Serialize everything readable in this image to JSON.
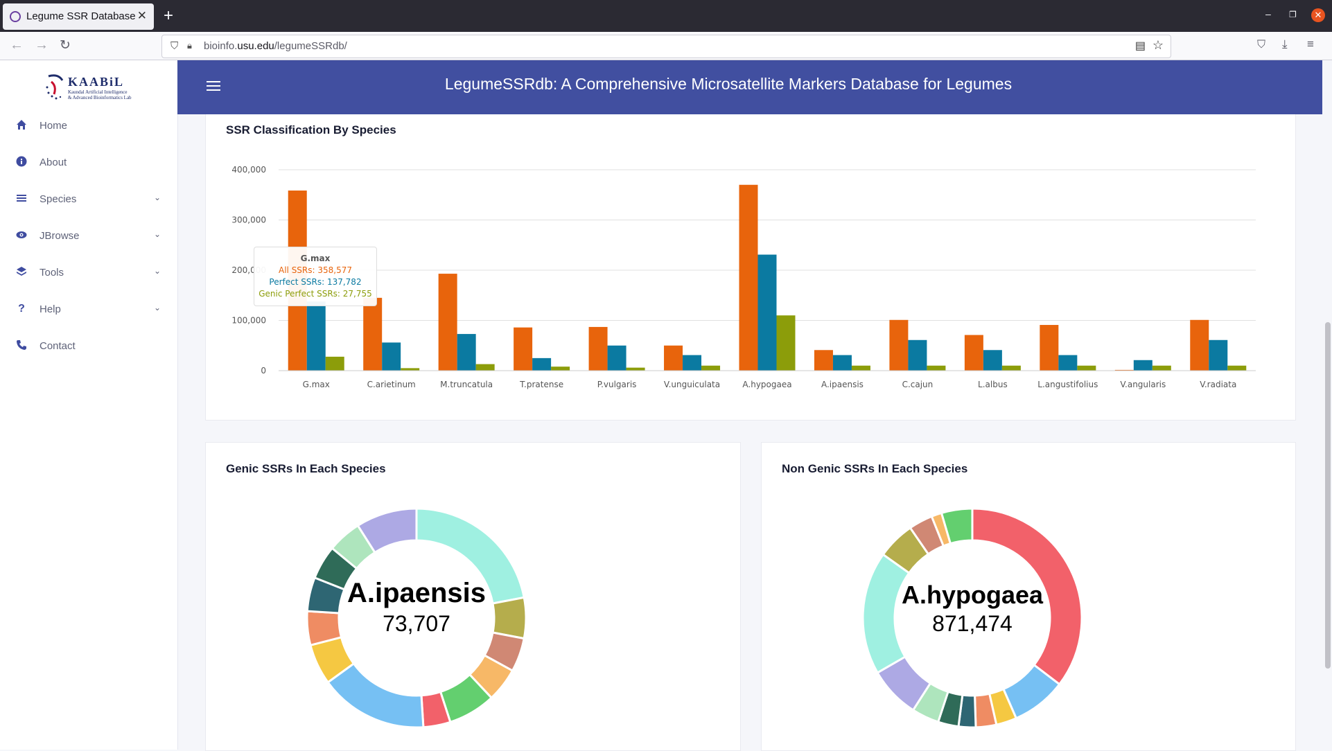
{
  "browser": {
    "tab_title": "Legume SSR Database",
    "url_domain": "bioinfo.",
    "url_host": "usu.edu",
    "url_path": "/legumeSSRdb/"
  },
  "sidebar": {
    "logo_text": "KAABiL",
    "logo_subtitle_1": "Kaundal Artificial Intelligence",
    "logo_subtitle_2": "& Advanced Bioinformatics Lab",
    "items": [
      {
        "label": "Home",
        "icon": "home-icon"
      },
      {
        "label": "About",
        "icon": "info-icon"
      },
      {
        "label": "Species",
        "icon": "list-icon"
      },
      {
        "label": "JBrowse",
        "icon": "eye-icon"
      },
      {
        "label": "Tools",
        "icon": "layers-icon"
      },
      {
        "label": "Help",
        "icon": "question-icon"
      },
      {
        "label": "Contact",
        "icon": "phone-icon"
      }
    ]
  },
  "header": {
    "title": "LegumeSSRdb: A Comprehensive Microsatellite Markers Database for Legumes"
  },
  "colors": {
    "header": "#414fa0",
    "all_ssrs": "#e8640c",
    "perfect_ssrs": "#0b7aa1",
    "genic_perfect_ssrs": "#8c9d0a"
  },
  "bar_card": {
    "title": "SSR Classification By Species",
    "tooltip": {
      "title": "G.max",
      "line1": "All SSRs: 358,577",
      "line2": "Perfect SSRs: 137,782",
      "line3": "Genic Perfect SSRs: 27,755"
    }
  },
  "genic_card": {
    "title": "Genic SSRs In Each Species",
    "center_label": "A.ipaensis",
    "center_value": "73,707"
  },
  "nongenic_card": {
    "title": "Non Genic SSRs In Each Species",
    "center_label": "A.hypogaea",
    "center_value": "871,474"
  },
  "chart_data": [
    {
      "type": "bar",
      "title": "SSR Classification By Species",
      "categories": [
        "G.max",
        "C.arietinum",
        "M.truncatula",
        "T.pratense",
        "P.vulgaris",
        "V.unguiculata",
        "A.hypogaea",
        "A.ipaensis",
        "C.cajun",
        "L.albus",
        "L.angustifolius",
        "V.angularis",
        "V.radiata"
      ],
      "series": [
        {
          "name": "All SSRs",
          "values": [
            358577,
            145000,
            193000,
            86000,
            87000,
            50000,
            370000,
            41000,
            101000,
            71000,
            91000,
            1500,
            101000
          ]
        },
        {
          "name": "Perfect SSRs",
          "values": [
            137782,
            56000,
            73000,
            25000,
            50000,
            31000,
            231000,
            31000,
            61000,
            41000,
            31000,
            21000,
            61000
          ]
        },
        {
          "name": "Genic Perfect SSRs",
          "values": [
            27755,
            5000,
            13000,
            8000,
            6000,
            10000,
            110000,
            10000,
            10000,
            10000,
            10000,
            10000,
            10000
          ]
        }
      ],
      "yticks": [
        "0",
        "100,000",
        "200,000",
        "300,000",
        "400,000"
      ],
      "ylim": [
        0,
        400000
      ],
      "grid": true
    },
    {
      "type": "pie",
      "title": "Genic SSRs In Each Species",
      "center_label": "A.ipaensis",
      "center_value": "73,707",
      "slices": [
        {
          "value": 22,
          "color": "#9ff0e1"
        },
        {
          "value": 6,
          "color": "#b5ad4c"
        },
        {
          "value": 5,
          "color": "#d08874"
        },
        {
          "value": 5,
          "color": "#f7b867"
        },
        {
          "value": 7,
          "color": "#63cf6f"
        },
        {
          "value": 4,
          "color": "#f2616a"
        },
        {
          "value": 16,
          "color": "#76c0f3"
        },
        {
          "value": 6,
          "color": "#f5c842"
        },
        {
          "value": 5,
          "color": "#ef8c63"
        },
        {
          "value": 5,
          "color": "#2e6673"
        },
        {
          "value": 5,
          "color": "#2f6b58"
        },
        {
          "value": 5,
          "color": "#aee5bd"
        },
        {
          "value": 9,
          "color": "#ada9e4"
        }
      ]
    },
    {
      "type": "pie",
      "title": "Non Genic SSRs In Each Species",
      "center_label": "A.hypogaea",
      "center_value": "871,474",
      "slices": [
        {
          "value": 35,
          "color": "#f2616a"
        },
        {
          "value": 8,
          "color": "#76c0f3"
        },
        {
          "value": 3,
          "color": "#f5c842"
        },
        {
          "value": 3,
          "color": "#ef8c63"
        },
        {
          "value": 2.5,
          "color": "#2e6673"
        },
        {
          "value": 3,
          "color": "#2f6b58"
        },
        {
          "value": 4,
          "color": "#aee5bd"
        },
        {
          "value": 7.5,
          "color": "#ada9e4"
        },
        {
          "value": 18,
          "color": "#9ff0e1"
        },
        {
          "value": 5.5,
          "color": "#b5ad4c"
        },
        {
          "value": 3.5,
          "color": "#d08874"
        },
        {
          "value": 1.5,
          "color": "#f7b867"
        },
        {
          "value": 4.5,
          "color": "#63cf6f"
        }
      ]
    }
  ]
}
